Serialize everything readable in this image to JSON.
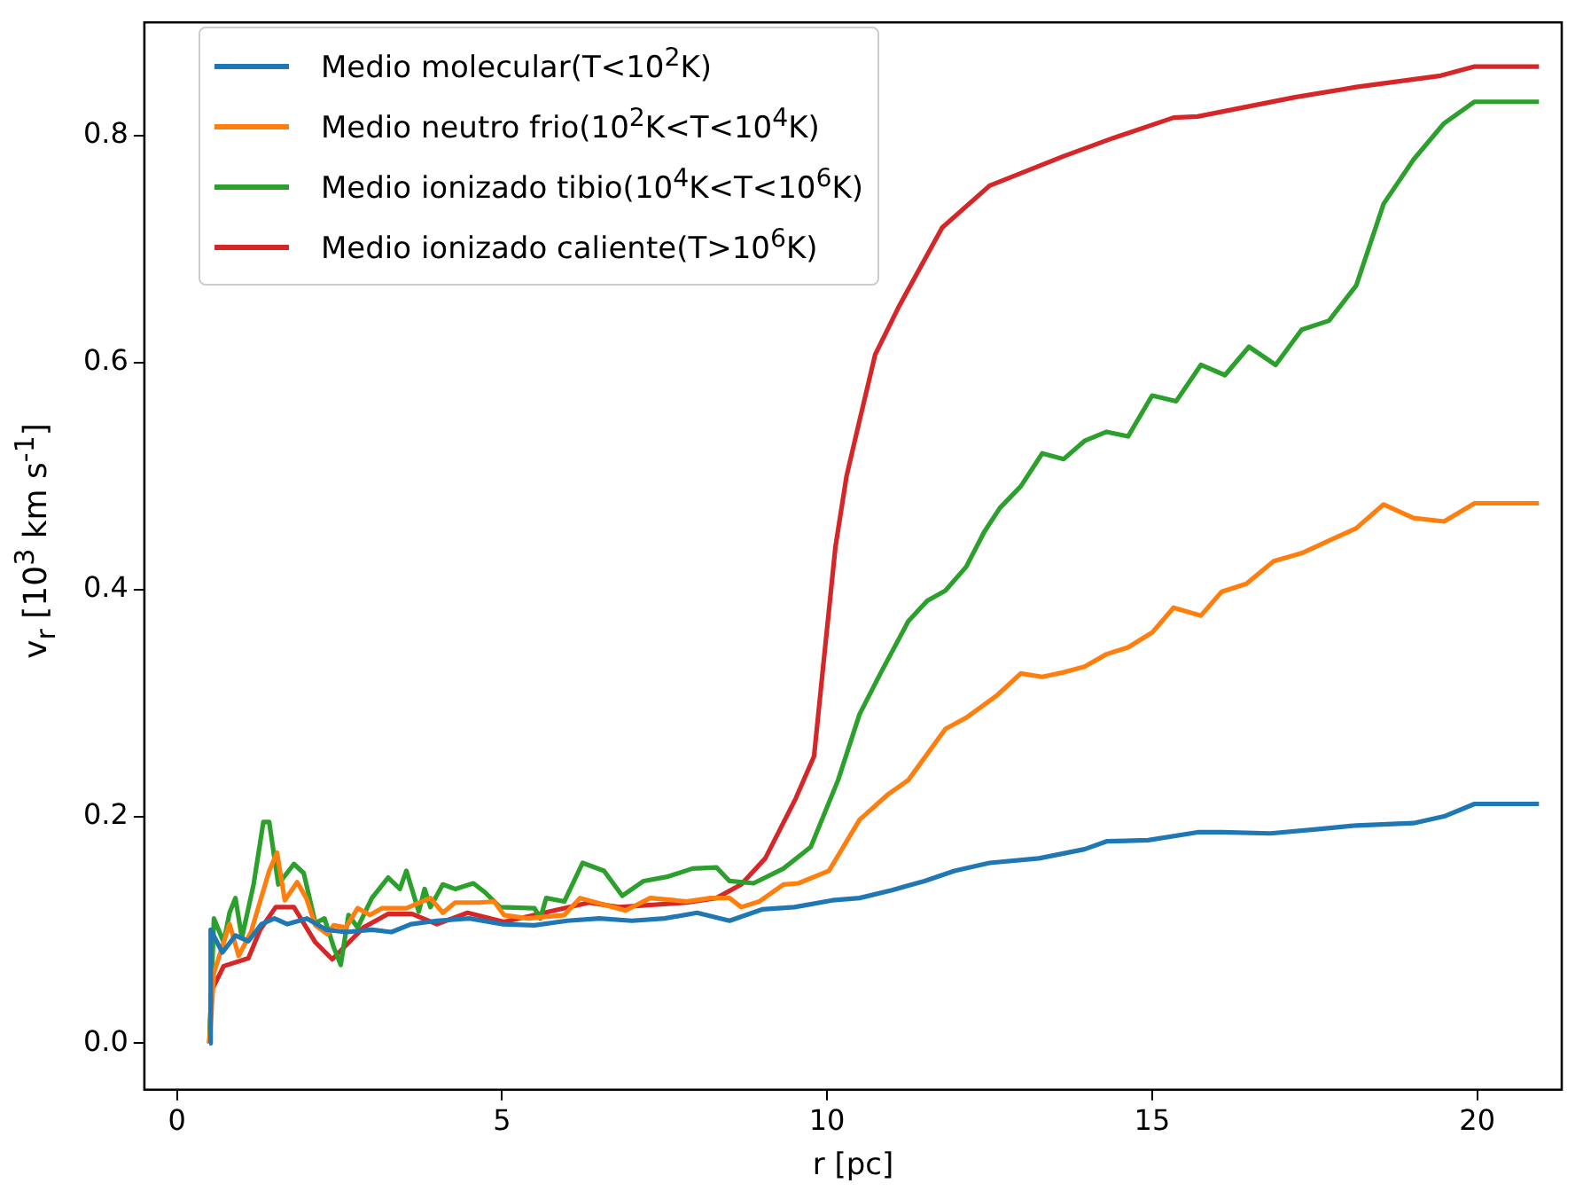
{
  "chart_data": {
    "type": "line",
    "xlabel": "r [pc]",
    "ylabel": "v$_{r}$ [10$^{3}$ km s$^{-1}$]",
    "xlim": [
      -0.5,
      21.3
    ],
    "ylim": [
      -0.041,
      0.9
    ],
    "xticks": [
      0,
      5,
      10,
      15,
      20
    ],
    "yticks": [
      {
        "value": 0,
        "label": "0.0"
      },
      {
        "value": 0.2,
        "label": "0.2"
      },
      {
        "value": 0.4,
        "label": "0.4"
      },
      {
        "value": 0.6,
        "label": "0.6"
      },
      {
        "value": 0.8,
        "label": "0.8"
      }
    ],
    "grid": false,
    "legend": "top left",
    "marker": "none",
    "series": [
      {
        "name": "Medio molecular(T<10$^{2}$K)",
        "color": "#1f77b4",
        "x": [
          0.5,
          0.52,
          0.7,
          0.9,
          1.1,
          1.3,
          1.5,
          1.7,
          2.0,
          2.3,
          2.6,
          3.0,
          3.3,
          3.6,
          4.0,
          4.5,
          5.0,
          5.5,
          6.0,
          6.5,
          7.0,
          7.5,
          8.0,
          8.5,
          9.0,
          9.5,
          10.08,
          10.5,
          11.0,
          11.5,
          11.96,
          12.5,
          13.26,
          13.96,
          14.3,
          14.94,
          15.7,
          16.07,
          16.82,
          17.6,
          18.14,
          19.02,
          19.49,
          19.96,
          20.95
        ],
        "values": [
          0.0,
          0.1,
          0.08,
          0.095,
          0.09,
          0.105,
          0.11,
          0.105,
          0.11,
          0.1,
          0.098,
          0.1,
          0.098,
          0.105,
          0.108,
          0.11,
          0.105,
          0.104,
          0.108,
          0.11,
          0.108,
          0.11,
          0.115,
          0.108,
          0.118,
          0.12,
          0.126,
          0.128,
          0.135,
          0.143,
          0.152,
          0.159,
          0.163,
          0.171,
          0.178,
          0.179,
          0.186,
          0.186,
          0.185,
          0.189,
          0.192,
          0.194,
          0.2,
          0.211,
          0.211
        ]
      },
      {
        "name": "Medio neutro frio(10$^{2}$K<T<10$^{4}$K)",
        "color": "#ff7f0e",
        "x": [
          0.5,
          0.57,
          0.72,
          0.81,
          0.95,
          1.14,
          1.28,
          1.42,
          1.54,
          1.66,
          1.85,
          1.99,
          2.13,
          2.32,
          2.41,
          2.6,
          2.78,
          2.97,
          3.15,
          3.53,
          3.9,
          4.09,
          4.28,
          4.65,
          4.88,
          5.03,
          5.4,
          5.96,
          6.2,
          6.71,
          6.9,
          7.28,
          7.84,
          8.21,
          8.5,
          8.68,
          8.96,
          9.33,
          9.56,
          10.03,
          10.5,
          10.93,
          11.25,
          11.82,
          12.14,
          12.6,
          12.98,
          13.31,
          13.64,
          13.96,
          14.3,
          14.63,
          15.0,
          15.33,
          15.75,
          16.07,
          16.45,
          16.87,
          17.3,
          17.72,
          18.14,
          18.56,
          19.02,
          19.49,
          19.96,
          20.95
        ],
        "values": [
          0.0,
          0.062,
          0.089,
          0.105,
          0.077,
          0.098,
          0.125,
          0.152,
          0.168,
          0.126,
          0.142,
          0.128,
          0.104,
          0.096,
          0.104,
          0.102,
          0.119,
          0.113,
          0.119,
          0.119,
          0.128,
          0.115,
          0.124,
          0.124,
          0.125,
          0.113,
          0.11,
          0.113,
          0.128,
          0.12,
          0.117,
          0.128,
          0.125,
          0.128,
          0.128,
          0.12,
          0.125,
          0.14,
          0.141,
          0.152,
          0.197,
          0.219,
          0.232,
          0.277,
          0.287,
          0.306,
          0.326,
          0.323,
          0.327,
          0.332,
          0.343,
          0.349,
          0.362,
          0.384,
          0.377,
          0.398,
          0.405,
          0.425,
          0.432,
          0.443,
          0.454,
          0.475,
          0.463,
          0.46,
          0.476,
          0.476
        ]
      },
      {
        "name": "Medio ionizado tibio(10$^{4}$K<T<10$^{6}$K)",
        "color": "#2ca02c",
        "x": [
          0.5,
          0.57,
          0.72,
          0.81,
          0.9,
          1.0,
          1.18,
          1.33,
          1.42,
          1.56,
          1.8,
          1.95,
          2.13,
          2.27,
          2.41,
          2.52,
          2.64,
          2.78,
          3.0,
          3.25,
          3.43,
          3.53,
          3.72,
          3.81,
          3.9,
          4.09,
          4.28,
          4.56,
          4.74,
          4.97,
          5.5,
          5.59,
          5.68,
          5.96,
          6.24,
          6.57,
          6.85,
          7.18,
          7.56,
          7.93,
          8.3,
          8.5,
          8.87,
          9.33,
          9.75,
          10.17,
          10.5,
          10.83,
          11.25,
          11.54,
          11.82,
          12.14,
          12.42,
          12.66,
          12.98,
          13.31,
          13.64,
          13.96,
          14.3,
          14.63,
          15.0,
          15.37,
          15.75,
          16.12,
          16.49,
          16.9,
          17.3,
          17.72,
          18.14,
          18.56,
          19.02,
          19.49,
          19.96,
          20.95
        ],
        "values": [
          0.0,
          0.11,
          0.089,
          0.115,
          0.128,
          0.093,
          0.14,
          0.195,
          0.195,
          0.14,
          0.158,
          0.15,
          0.106,
          0.11,
          0.085,
          0.069,
          0.113,
          0.102,
          0.128,
          0.146,
          0.136,
          0.152,
          0.116,
          0.136,
          0.12,
          0.14,
          0.136,
          0.141,
          0.133,
          0.12,
          0.119,
          0.11,
          0.128,
          0.125,
          0.159,
          0.152,
          0.13,
          0.143,
          0.147,
          0.154,
          0.155,
          0.143,
          0.141,
          0.154,
          0.173,
          0.232,
          0.29,
          0.327,
          0.372,
          0.39,
          0.399,
          0.42,
          0.451,
          0.472,
          0.491,
          0.52,
          0.515,
          0.531,
          0.539,
          0.535,
          0.571,
          0.566,
          0.598,
          0.589,
          0.614,
          0.598,
          0.629,
          0.637,
          0.668,
          0.74,
          0.779,
          0.811,
          0.83,
          0.83
        ]
      },
      {
        "name": "Medio ionizado caliente(T>10$^{6}$K)",
        "color": "#d62728",
        "x": [
          0.5,
          0.53,
          0.72,
          1.1,
          1.28,
          1.52,
          1.8,
          2.13,
          2.39,
          2.87,
          3.25,
          3.62,
          4.0,
          4.47,
          5.03,
          5.5,
          6.34,
          6.8,
          7.84,
          8.3,
          8.68,
          9.05,
          9.52,
          9.8,
          9.94,
          10.13,
          10.3,
          10.5,
          10.74,
          11.11,
          11.77,
          12.5,
          13.64,
          14.4,
          15.33,
          15.7,
          17.2,
          18.14,
          19.44,
          19.96,
          20.95
        ],
        "values": [
          0.0,
          0.046,
          0.068,
          0.075,
          0.1,
          0.12,
          0.12,
          0.089,
          0.074,
          0.102,
          0.114,
          0.114,
          0.105,
          0.115,
          0.107,
          0.113,
          0.124,
          0.12,
          0.124,
          0.128,
          0.14,
          0.163,
          0.216,
          0.253,
          0.332,
          0.438,
          0.5,
          0.549,
          0.607,
          0.65,
          0.719,
          0.756,
          0.782,
          0.798,
          0.816,
          0.817,
          0.834,
          0.843,
          0.853,
          0.861,
          0.861
        ]
      }
    ]
  }
}
